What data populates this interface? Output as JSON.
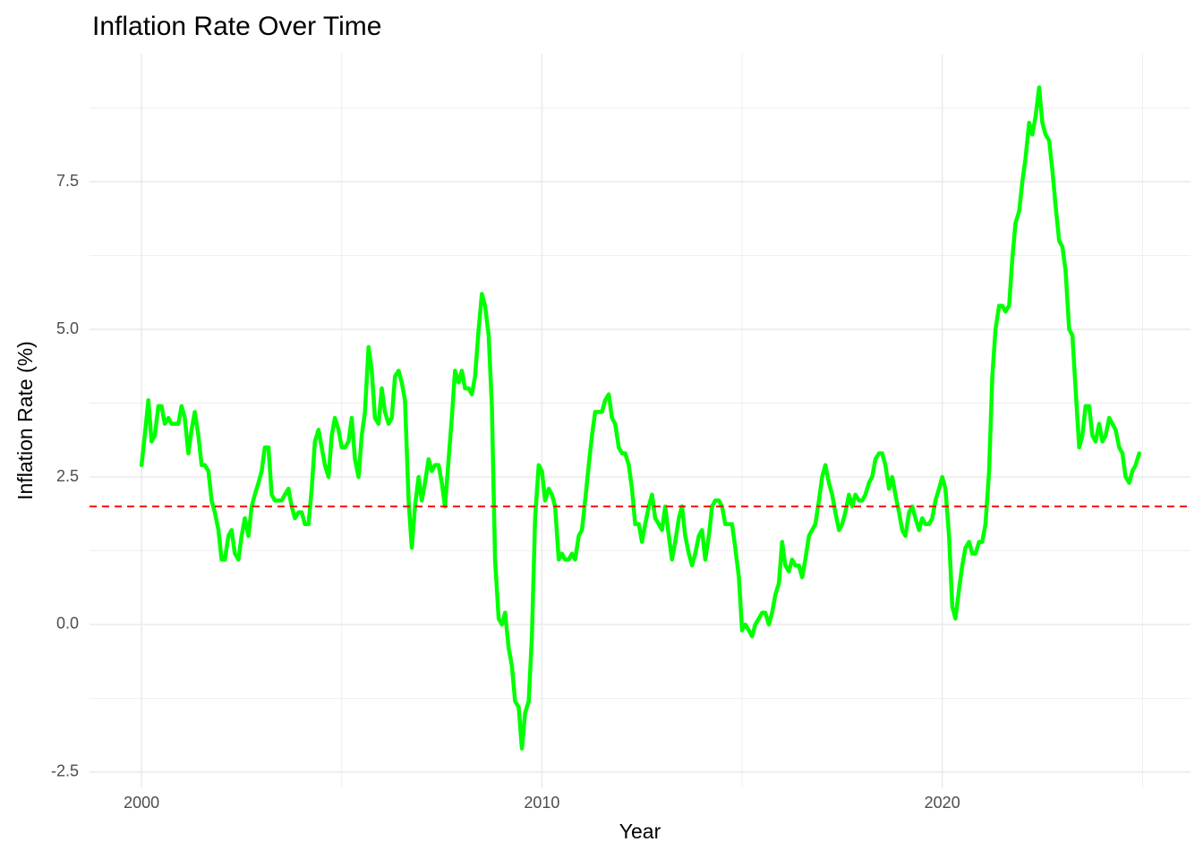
{
  "chart_data": {
    "type": "line",
    "title": "Inflation Rate Over Time",
    "x_label": "Year",
    "y_label": "Inflation Rate (%)",
    "color": "#00ff00",
    "reference_line": {
      "value": 2,
      "color": "#ff0000",
      "dashed": true
    },
    "xlim": [
      1998.7,
      2026.2
    ],
    "ylim": [
      -2.76,
      9.67
    ],
    "xticks": [
      2000,
      2010,
      2020
    ],
    "yticks": [
      -2.5,
      {
        "value": 0,
        "label": "0.0"
      },
      2.5,
      {
        "value": 5,
        "label": "5.0"
      },
      7.5
    ],
    "xminor": [
      2005,
      2015,
      2025
    ],
    "yminor": [
      -1.25,
      1.25,
      3.75,
      6.25,
      8.75
    ],
    "grid": true,
    "x": [
      2000,
      2000.08,
      2000.17,
      2000.25,
      2000.33,
      2000.42,
      2000.5,
      2000.58,
      2000.67,
      2000.75,
      2000.83,
      2000.92,
      2001,
      2001.08,
      2001.17,
      2001.25,
      2001.33,
      2001.42,
      2001.5,
      2001.58,
      2001.67,
      2001.75,
      2001.83,
      2001.92,
      2002,
      2002.08,
      2002.17,
      2002.25,
      2002.33,
      2002.42,
      2002.5,
      2002.58,
      2002.67,
      2002.75,
      2002.83,
      2002.92,
      2003,
      2003.08,
      2003.17,
      2003.25,
      2003.33,
      2003.42,
      2003.5,
      2003.58,
      2003.67,
      2003.75,
      2003.83,
      2003.92,
      2004,
      2004.08,
      2004.17,
      2004.25,
      2004.33,
      2004.42,
      2004.5,
      2004.58,
      2004.67,
      2004.75,
      2004.83,
      2004.92,
      2005,
      2005.08,
      2005.17,
      2005.25,
      2005.33,
      2005.42,
      2005.5,
      2005.58,
      2005.67,
      2005.75,
      2005.83,
      2005.92,
      2006,
      2006.08,
      2006.17,
      2006.25,
      2006.33,
      2006.42,
      2006.5,
      2006.58,
      2006.67,
      2006.75,
      2006.83,
      2006.92,
      2007,
      2007.08,
      2007.17,
      2007.25,
      2007.33,
      2007.42,
      2007.5,
      2007.58,
      2007.67,
      2007.75,
      2007.83,
      2007.92,
      2008,
      2008.08,
      2008.17,
      2008.25,
      2008.33,
      2008.42,
      2008.5,
      2008.58,
      2008.67,
      2008.75,
      2008.83,
      2008.92,
      2009,
      2009.08,
      2009.17,
      2009.25,
      2009.33,
      2009.42,
      2009.5,
      2009.58,
      2009.67,
      2009.75,
      2009.83,
      2009.92,
      2010,
      2010.08,
      2010.17,
      2010.25,
      2010.33,
      2010.42,
      2010.5,
      2010.58,
      2010.67,
      2010.75,
      2010.83,
      2010.92,
      2011,
      2011.08,
      2011.17,
      2011.25,
      2011.33,
      2011.42,
      2011.5,
      2011.58,
      2011.67,
      2011.75,
      2011.83,
      2011.92,
      2012,
      2012.08,
      2012.17,
      2012.25,
      2012.33,
      2012.42,
      2012.5,
      2012.58,
      2012.67,
      2012.75,
      2012.83,
      2012.92,
      2013,
      2013.08,
      2013.17,
      2013.25,
      2013.33,
      2013.42,
      2013.5,
      2013.58,
      2013.67,
      2013.75,
      2013.83,
      2013.92,
      2014,
      2014.08,
      2014.17,
      2014.25,
      2014.33,
      2014.42,
      2014.5,
      2014.58,
      2014.67,
      2014.75,
      2014.83,
      2014.92,
      2015,
      2015.08,
      2015.17,
      2015.25,
      2015.33,
      2015.42,
      2015.5,
      2015.58,
      2015.67,
      2015.75,
      2015.83,
      2015.92,
      2016,
      2016.08,
      2016.17,
      2016.25,
      2016.33,
      2016.42,
      2016.5,
      2016.58,
      2016.67,
      2016.75,
      2016.83,
      2016.92,
      2017,
      2017.08,
      2017.17,
      2017.25,
      2017.33,
      2017.42,
      2017.5,
      2017.58,
      2017.67,
      2017.75,
      2017.83,
      2017.92,
      2018,
      2018.08,
      2018.17,
      2018.25,
      2018.33,
      2018.42,
      2018.5,
      2018.58,
      2018.67,
      2018.75,
      2018.83,
      2018.92,
      2019,
      2019.08,
      2019.17,
      2019.25,
      2019.33,
      2019.42,
      2019.5,
      2019.58,
      2019.67,
      2019.75,
      2019.83,
      2019.92,
      2020,
      2020.08,
      2020.17,
      2020.25,
      2020.33,
      2020.42,
      2020.5,
      2020.58,
      2020.67,
      2020.75,
      2020.83,
      2020.92,
      2021,
      2021.08,
      2021.17,
      2021.25,
      2021.33,
      2021.42,
      2021.5,
      2021.58,
      2021.67,
      2021.75,
      2021.83,
      2021.92,
      2022,
      2022.08,
      2022.17,
      2022.25,
      2022.33,
      2022.42,
      2022.5,
      2022.58,
      2022.67,
      2022.75,
      2022.83,
      2022.92,
      2023,
      2023.08,
      2023.17,
      2023.25,
      2023.33,
      2023.42,
      2023.5,
      2023.58,
      2023.67,
      2023.75,
      2023.83,
      2023.92,
      2024,
      2024.08,
      2024.17,
      2024.25,
      2024.33,
      2024.42,
      2024.5,
      2024.58,
      2024.67,
      2024.75,
      2024.83,
      2024.92
    ],
    "values": [
      2.7,
      3.2,
      3.8,
      3.1,
      3.2,
      3.7,
      3.7,
      3.4,
      3.5,
      3.4,
      3.4,
      3.4,
      3.7,
      3.5,
      2.9,
      3.3,
      3.6,
      3.2,
      2.7,
      2.7,
      2.6,
      2.1,
      1.9,
      1.6,
      1.1,
      1.1,
      1.5,
      1.6,
      1.2,
      1.1,
      1.5,
      1.8,
      1.5,
      2.0,
      2.2,
      2.4,
      2.6,
      3.0,
      3.0,
      2.2,
      2.1,
      2.1,
      2.1,
      2.2,
      2.3,
      2.0,
      1.8,
      1.9,
      1.9,
      1.7,
      1.7,
      2.3,
      3.1,
      3.3,
      3.0,
      2.7,
      2.5,
      3.2,
      3.5,
      3.3,
      3.0,
      3.0,
      3.1,
      3.5,
      2.8,
      2.5,
      3.2,
      3.6,
      4.7,
      4.3,
      3.5,
      3.4,
      4.0,
      3.6,
      3.4,
      3.5,
      4.2,
      4.3,
      4.1,
      3.8,
      2.1,
      1.3,
      2.0,
      2.5,
      2.1,
      2.4,
      2.8,
      2.6,
      2.7,
      2.7,
      2.4,
      2.0,
      2.8,
      3.5,
      4.3,
      4.1,
      4.3,
      4.0,
      4.0,
      3.9,
      4.2,
      5.0,
      5.6,
      5.4,
      4.9,
      3.7,
      1.1,
      0.1,
      0.0,
      0.2,
      -0.4,
      -0.7,
      -1.3,
      -1.4,
      -2.1,
      -1.5,
      -1.3,
      -0.2,
      1.8,
      2.7,
      2.6,
      2.1,
      2.3,
      2.2,
      2.0,
      1.1,
      1.2,
      1.1,
      1.1,
      1.2,
      1.1,
      1.5,
      1.6,
      2.1,
      2.7,
      3.2,
      3.6,
      3.6,
      3.6,
      3.8,
      3.9,
      3.5,
      3.4,
      3.0,
      2.9,
      2.9,
      2.7,
      2.3,
      1.7,
      1.7,
      1.4,
      1.7,
      2.0,
      2.2,
      1.8,
      1.7,
      1.6,
      2.0,
      1.5,
      1.1,
      1.4,
      1.8,
      2.0,
      1.5,
      1.2,
      1.0,
      1.2,
      1.5,
      1.6,
      1.1,
      1.5,
      2.0,
      2.1,
      2.1,
      2.0,
      1.7,
      1.7,
      1.7,
      1.3,
      0.8,
      -0.1,
      0.0,
      -0.1,
      -0.2,
      0.0,
      0.1,
      0.2,
      0.2,
      0.0,
      0.2,
      0.5,
      0.7,
      1.4,
      1.0,
      0.9,
      1.1,
      1.0,
      1.0,
      0.8,
      1.1,
      1.5,
      1.6,
      1.7,
      2.1,
      2.5,
      2.7,
      2.4,
      2.2,
      1.9,
      1.6,
      1.7,
      1.9,
      2.2,
      2.0,
      2.2,
      2.1,
      2.1,
      2.2,
      2.4,
      2.5,
      2.8,
      2.9,
      2.9,
      2.7,
      2.3,
      2.5,
      2.2,
      1.9,
      1.6,
      1.5,
      1.9,
      2.0,
      1.8,
      1.6,
      1.8,
      1.7,
      1.7,
      1.8,
      2.1,
      2.3,
      2.5,
      2.3,
      1.5,
      0.3,
      0.1,
      0.6,
      1.0,
      1.3,
      1.4,
      1.2,
      1.2,
      1.4,
      1.4,
      1.7,
      2.6,
      4.2,
      5.0,
      5.4,
      5.4,
      5.3,
      5.4,
      6.2,
      6.8,
      7.0,
      7.5,
      7.9,
      8.5,
      8.3,
      8.6,
      9.1,
      8.5,
      8.3,
      8.2,
      7.7,
      7.1,
      6.5,
      6.4,
      6.0,
      5.0,
      4.9,
      4.0,
      3.0,
      3.2,
      3.7,
      3.7,
      3.2,
      3.1,
      3.4,
      3.1,
      3.2,
      3.5,
      3.4,
      3.3,
      3.0,
      2.9,
      2.5,
      2.4,
      2.6,
      2.7,
      2.9
    ]
  }
}
